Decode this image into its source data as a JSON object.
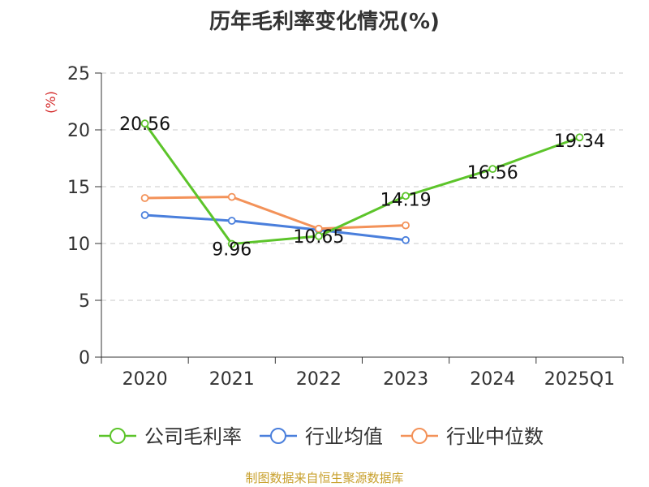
{
  "chart_data": {
    "type": "line",
    "title": "历年毛利率变化情况(%)",
    "ylabel": "(%)",
    "xlabel": "",
    "categories": [
      "2020",
      "2021",
      "2022",
      "2023",
      "2024",
      "2025Q1"
    ],
    "ylim": [
      0,
      25
    ],
    "yticks": [
      "0",
      "5",
      "10",
      "15",
      "20",
      "25"
    ],
    "grid": "horizontal dashed",
    "legend_position": "bottom",
    "series": [
      {
        "name": "公司毛利率",
        "color": "#5cc42a",
        "values": [
          20.56,
          9.96,
          10.65,
          14.19,
          16.56,
          19.34
        ],
        "labels": [
          "20.56",
          "9.96",
          "10.65",
          "14.19",
          "16.56",
          "19.34"
        ]
      },
      {
        "name": "行业均值",
        "color": "#4a7fdc",
        "values": [
          12.5,
          12.0,
          11.2,
          10.3,
          null,
          null
        ]
      },
      {
        "name": "行业中位数",
        "color": "#f39259",
        "values": [
          14.0,
          14.1,
          11.3,
          11.6,
          null,
          null
        ]
      }
    ],
    "source": "制图数据来自恒生聚源数据库"
  }
}
